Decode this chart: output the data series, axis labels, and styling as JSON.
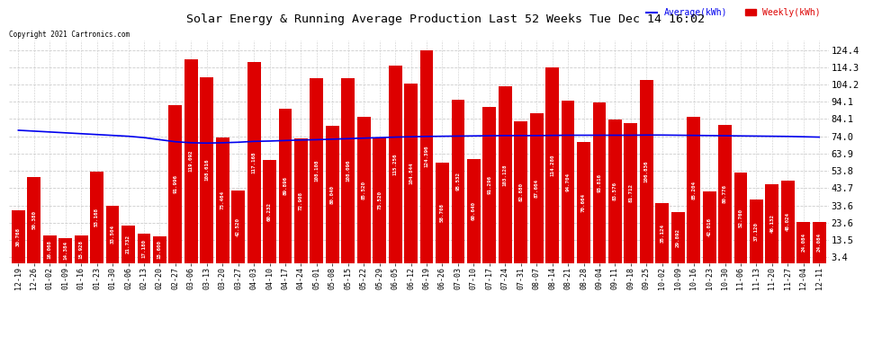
{
  "title": "Solar Energy & Running Average Production Last 52 Weeks Tue Dec 14 16:02",
  "copyright": "Copyright 2021 Cartronics.com",
  "legend_avg": "Average(kWh)",
  "legend_weekly": "Weekly(kWh)",
  "ylabel_right_values": [
    124.4,
    114.3,
    104.2,
    94.1,
    84.1,
    74.0,
    63.9,
    53.8,
    43.7,
    33.6,
    23.6,
    13.5,
    3.4
  ],
  "ylim": [
    0,
    130
  ],
  "bar_color": "#dd0000",
  "avg_line_color": "#0000ee",
  "background_color": "#ffffff",
  "grid_color": "#cccccc",
  "categories": [
    "12-19",
    "12-26",
    "01-02",
    "01-09",
    "01-16",
    "01-23",
    "01-30",
    "02-06",
    "02-13",
    "02-20",
    "02-27",
    "03-06",
    "03-13",
    "03-20",
    "03-27",
    "04-03",
    "04-10",
    "04-17",
    "04-24",
    "05-01",
    "05-08",
    "05-15",
    "05-22",
    "05-29",
    "06-05",
    "06-12",
    "06-19",
    "06-26",
    "07-03",
    "07-10",
    "07-17",
    "07-24",
    "07-31",
    "08-07",
    "08-14",
    "08-21",
    "08-28",
    "09-04",
    "09-11",
    "09-18",
    "09-25",
    "10-02",
    "10-09",
    "10-16",
    "10-23",
    "10-30",
    "11-06",
    "11-13",
    "11-20",
    "11-27",
    "12-04",
    "12-11"
  ],
  "weekly_values": [
    30.768,
    50.38,
    16.068,
    14.384,
    15.928,
    53.168,
    33.504,
    21.732,
    17.18,
    15.6,
    91.996,
    119.092,
    108.616,
    73.464,
    42.52,
    117.168,
    60.232,
    89.896,
    72.908,
    108.108,
    80.04,
    108.096,
    85.52,
    73.52,
    115.256,
    104.844,
    124.396,
    58.708,
    95.532,
    60.64,
    91.296,
    103.128,
    82.88,
    87.664,
    114.28,
    94.704,
    70.664,
    93.816,
    83.576,
    81.712,
    106.836,
    35.124,
    29.892,
    85.204,
    42.016,
    80.776,
    52.76,
    37.12,
    46.132,
    48.024,
    24.084,
    24.084
  ],
  "avg_values": [
    77.5,
    77.0,
    76.5,
    76.0,
    75.5,
    75.0,
    74.5,
    74.0,
    73.2,
    72.0,
    70.8,
    70.2,
    70.0,
    70.2,
    70.5,
    71.0,
    71.2,
    71.5,
    71.8,
    72.0,
    72.3,
    72.6,
    72.9,
    73.2,
    73.5,
    73.7,
    73.9,
    74.0,
    74.1,
    74.2,
    74.3,
    74.4,
    74.4,
    74.4,
    74.5,
    74.6,
    74.6,
    74.6,
    74.6,
    74.6,
    74.7,
    74.7,
    74.6,
    74.5,
    74.4,
    74.3,
    74.2,
    74.1,
    74.0,
    73.9,
    73.7,
    73.5
  ]
}
